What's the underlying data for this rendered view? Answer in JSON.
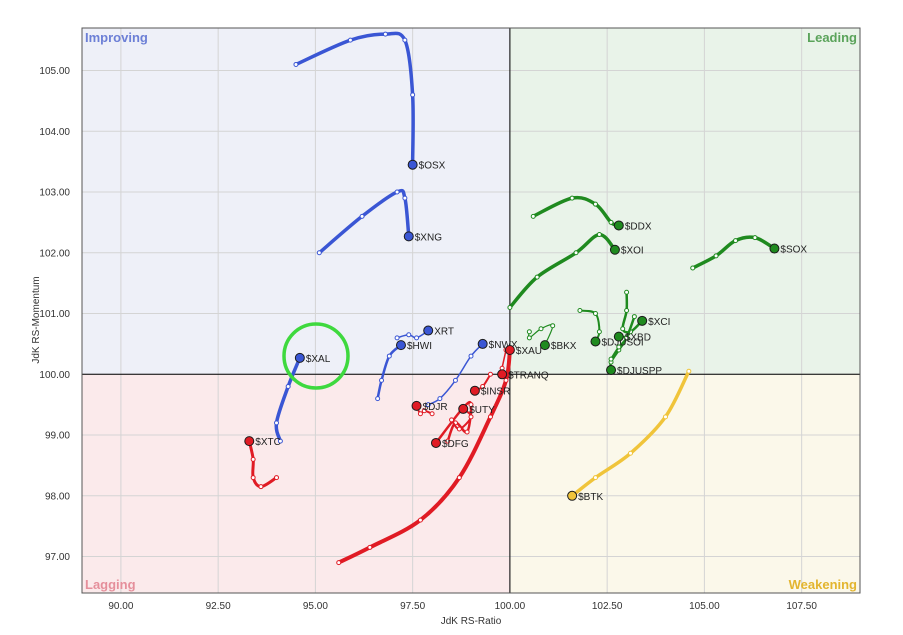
{
  "chart_data": {
    "type": "scatter",
    "subtype": "relative-rotation-graph",
    "xlabel": "JdK RS-Ratio",
    "ylabel": "JdK RS-Momentum",
    "xlim": [
      89.0,
      109.0
    ],
    "ylim": [
      96.4,
      105.7
    ],
    "x_ticks": [
      "90.00",
      "92.50",
      "95.00",
      "97.50",
      "100.00",
      "102.50",
      "105.00",
      "107.50"
    ],
    "y_ticks": [
      "97.00",
      "98.00",
      "99.00",
      "100.00",
      "101.00",
      "102.00",
      "103.00",
      "104.00",
      "105.00"
    ],
    "center": [
      100.0,
      100.0
    ],
    "grid": true,
    "quadrants": [
      {
        "key": "improving",
        "label": "Improving",
        "position": "top-left",
        "bg": "#eef0f8",
        "color": "#6c7fd6"
      },
      {
        "key": "leading",
        "label": "Leading",
        "position": "top-right",
        "bg": "#e9f3e9",
        "color": "#5aa35a"
      },
      {
        "key": "lagging",
        "label": "Lagging",
        "position": "bottom-left",
        "bg": "#fbeaeb",
        "color": "#e58f9b"
      },
      {
        "key": "weakening",
        "label": "Weakening",
        "position": "bottom-right",
        "bg": "#fbf8ea",
        "color": "#e3b52f"
      }
    ],
    "series_colors": {
      "improving": "#3a56d4",
      "leading": "#1f8a1f",
      "lagging": "#e01b24",
      "weakening": "#f0c43a"
    },
    "series": [
      {
        "name": "$OSX",
        "quadrant": "improving",
        "width": 3.5,
        "points": [
          [
            94.5,
            105.1
          ],
          [
            95.9,
            105.5
          ],
          [
            96.8,
            105.6
          ],
          [
            97.3,
            105.5
          ],
          [
            97.5,
            104.6
          ],
          [
            97.5,
            103.45
          ]
        ]
      },
      {
        "name": "$XNG",
        "quadrant": "improving",
        "width": 3.5,
        "points": [
          [
            95.1,
            102.0
          ],
          [
            96.2,
            102.6
          ],
          [
            97.1,
            103.0
          ],
          [
            97.3,
            102.9
          ],
          [
            97.4,
            102.27
          ]
        ]
      },
      {
        "name": "$XAL",
        "quadrant": "improving",
        "width": 3.5,
        "points": [
          [
            94.1,
            98.9
          ],
          [
            94.0,
            99.2
          ],
          [
            94.3,
            99.8
          ],
          [
            94.6,
            100.27
          ]
        ]
      },
      {
        "name": "$HWI",
        "quadrant": "improving",
        "width": 2.5,
        "points": [
          [
            96.6,
            99.6
          ],
          [
            96.7,
            99.9
          ],
          [
            96.9,
            100.3
          ],
          [
            97.2,
            100.48
          ]
        ]
      },
      {
        "name": "XRT",
        "quadrant": "improving",
        "width": 1.5,
        "points": [
          [
            97.1,
            100.6
          ],
          [
            97.4,
            100.65
          ],
          [
            97.6,
            100.6
          ],
          [
            97.9,
            100.72
          ]
        ]
      },
      {
        "name": "$NWX",
        "quadrant": "improving",
        "width": 1.5,
        "points": [
          [
            97.9,
            99.5
          ],
          [
            98.2,
            99.6
          ],
          [
            98.6,
            99.9
          ],
          [
            99.0,
            100.3
          ],
          [
            99.3,
            100.5
          ]
        ]
      },
      {
        "name": "$DDX",
        "quadrant": "leading",
        "width": 3.5,
        "points": [
          [
            100.6,
            102.6
          ],
          [
            101.6,
            102.9
          ],
          [
            102.2,
            102.8
          ],
          [
            102.6,
            102.5
          ],
          [
            102.8,
            102.45
          ]
        ]
      },
      {
        "name": "$XOI",
        "quadrant": "leading",
        "width": 3.5,
        "points": [
          [
            100.0,
            101.1
          ],
          [
            100.7,
            101.6
          ],
          [
            101.7,
            102.0
          ],
          [
            102.3,
            102.3
          ],
          [
            102.7,
            102.05
          ]
        ]
      },
      {
        "name": "$SOX",
        "quadrant": "leading",
        "width": 3.5,
        "points": [
          [
            104.7,
            101.75
          ],
          [
            105.3,
            101.95
          ],
          [
            105.8,
            102.2
          ],
          [
            106.3,
            102.25
          ],
          [
            106.8,
            102.07
          ]
        ]
      },
      {
        "name": "$XCI",
        "quadrant": "leading",
        "width": 2.5,
        "points": [
          [
            103.0,
            101.35
          ],
          [
            103.0,
            101.05
          ],
          [
            102.9,
            100.75
          ],
          [
            103.1,
            100.7
          ],
          [
            103.4,
            100.88
          ]
        ]
      },
      {
        "name": "$DJUSPP",
        "quadrant": "leading",
        "width": 2.5,
        "points": [
          [
            103.2,
            100.95
          ],
          [
            103.0,
            100.6
          ],
          [
            102.8,
            100.4
          ],
          [
            102.6,
            100.2
          ],
          [
            102.6,
            100.07
          ]
        ]
      },
      {
        "name": "$DJUSOI",
        "quadrant": "leading",
        "width": 2.0,
        "points": [
          [
            101.8,
            101.05
          ],
          [
            102.2,
            101.0
          ],
          [
            102.3,
            100.7
          ],
          [
            102.2,
            100.54
          ]
        ]
      },
      {
        "name": "$XBD",
        "quadrant": "leading",
        "width": 2.0,
        "points": [
          [
            102.6,
            100.25
          ],
          [
            102.8,
            100.45
          ],
          [
            103.0,
            100.6
          ],
          [
            102.8,
            100.62
          ]
        ]
      },
      {
        "name": "$BKX",
        "quadrant": "leading",
        "width": 1.2,
        "points": [
          [
            100.5,
            100.7
          ],
          [
            100.5,
            100.6
          ],
          [
            100.8,
            100.75
          ],
          [
            101.1,
            100.8
          ],
          [
            100.9,
            100.48
          ]
        ]
      },
      {
        "name": "$BTK",
        "quadrant": "weakening",
        "width": 3.5,
        "points": [
          [
            104.6,
            100.05
          ],
          [
            104.0,
            99.3
          ],
          [
            103.1,
            98.7
          ],
          [
            102.2,
            98.3
          ],
          [
            101.6,
            98.0
          ]
        ]
      },
      {
        "name": "$XAU",
        "quadrant": "lagging",
        "width": 4.0,
        "points": [
          [
            95.6,
            96.9
          ],
          [
            96.4,
            97.15
          ],
          [
            97.7,
            97.6
          ],
          [
            98.7,
            98.3
          ],
          [
            99.5,
            99.3
          ],
          [
            99.9,
            99.9
          ],
          [
            100.0,
            100.4
          ]
        ]
      },
      {
        "name": "$DFG",
        "quadrant": "lagging",
        "width": 2.5,
        "points": [
          [
            98.4,
            98.9
          ],
          [
            98.6,
            99.2
          ],
          [
            98.9,
            99.05
          ],
          [
            99.0,
            99.5
          ],
          [
            98.8,
            99.45
          ],
          [
            98.1,
            98.87
          ]
        ]
      },
      {
        "name": "$XTC",
        "quadrant": "lagging",
        "width": 3.0,
        "points": [
          [
            94.0,
            98.3
          ],
          [
            93.6,
            98.15
          ],
          [
            93.4,
            98.3
          ],
          [
            93.4,
            98.6
          ],
          [
            93.3,
            98.9
          ]
        ]
      },
      {
        "name": "$DJR",
        "quadrant": "lagging",
        "width": 2.0,
        "points": [
          [
            98.0,
            99.35
          ],
          [
            97.8,
            99.4
          ],
          [
            97.7,
            99.35
          ],
          [
            97.6,
            99.48
          ]
        ]
      },
      {
        "name": "$UTY",
        "quadrant": "lagging",
        "width": 2.0,
        "points": [
          [
            98.5,
            99.25
          ],
          [
            98.7,
            99.1
          ],
          [
            99.0,
            99.3
          ],
          [
            98.8,
            99.43
          ]
        ]
      },
      {
        "name": "$INSR",
        "quadrant": "lagging",
        "width": 2.0,
        "points": [
          [
            99.5,
            100.0
          ],
          [
            99.3,
            99.8
          ],
          [
            99.1,
            99.73
          ]
        ]
      },
      {
        "name": "$TRANQ",
        "quadrant": "lagging",
        "width": 1.5,
        "points": [
          [
            99.9,
            100.4
          ],
          [
            99.8,
            100.1
          ],
          [
            99.8,
            100.0
          ]
        ]
      }
    ]
  }
}
